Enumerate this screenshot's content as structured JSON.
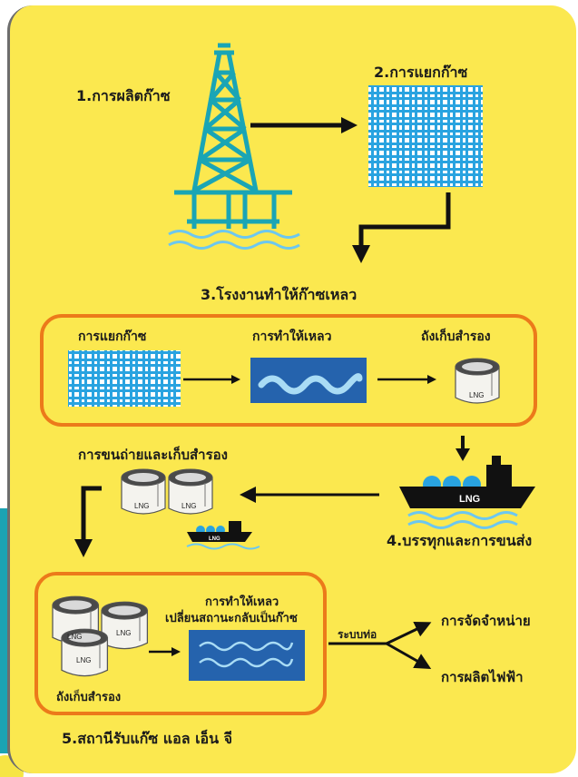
{
  "steps": {
    "step1": "1.การผลิตก๊าซ",
    "step2": "2.การแยกก๊าซ",
    "step3": "3.โรงงานทำให้ก๊าซเหลว",
    "step4": "4.บรรทุกและการขนส่ง",
    "step5": "5.สถานีรับแก๊ซ แอล เอ็น จี"
  },
  "liquefaction_box": {
    "separation": "การแยกก๊าซ",
    "liquefy": "การทำให้เหลว",
    "storage": "ถังเก็บสำรอง"
  },
  "unloading": {
    "title": "การขนถ่ายและเก็บสำรอง"
  },
  "receiving_box": {
    "regas_line1": "การทำให้เหลว",
    "regas_line2": "เปลี่ยนสถานะกลับเป็นก๊าซ",
    "storage": "ถังเก็บสำรอง"
  },
  "pipeline": {
    "label": "ระบบท่อ",
    "dest_distribution": "การจัดจำหน่าย",
    "dest_power": "การผลิตไฟฟ้า"
  },
  "tank_label": "LNG",
  "ship_label": "LNG",
  "colors": {
    "background": "#fbe84f",
    "accent_box": "#ec7a1a",
    "grid_blue": "#29a3e0",
    "liquid_blue": "#2563ad",
    "tower_teal": "#1aa5b5",
    "teal_strip": "#1ba3b3"
  }
}
